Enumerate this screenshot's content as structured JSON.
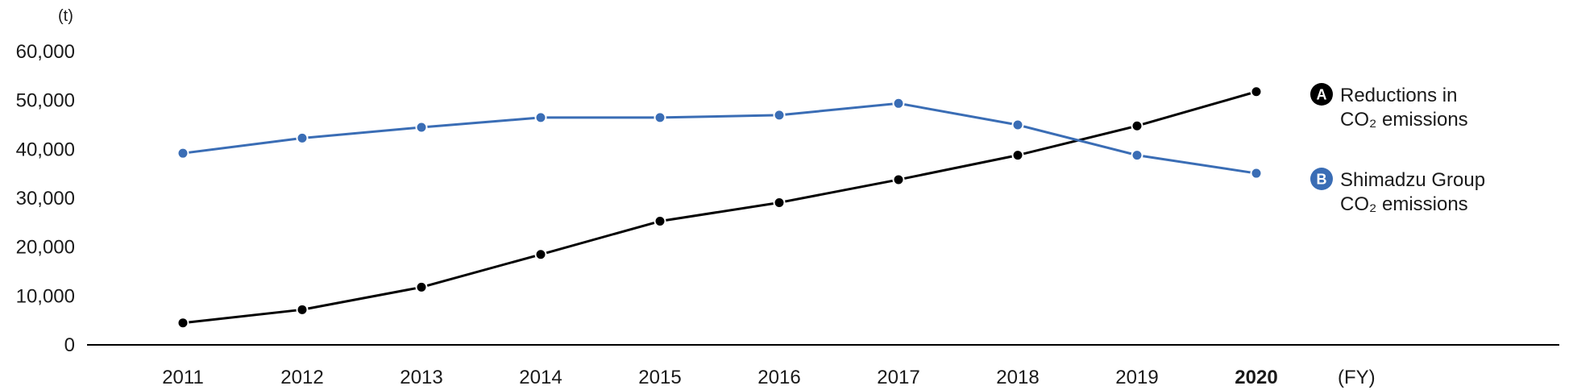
{
  "chart_data": {
    "type": "line",
    "y_unit": "(t)",
    "x_unit": "(FY)",
    "categories": [
      "2011",
      "2012",
      "2013",
      "2014",
      "2015",
      "2016",
      "2017",
      "2018",
      "2019",
      "2020"
    ],
    "highlighted_category": "2020",
    "y_ticks": [
      "0",
      "10,000",
      "20,000",
      "30,000",
      "40,000",
      "50,000",
      "60,000"
    ],
    "ylim": [
      0,
      60000
    ],
    "grid": false,
    "legend_position": "right",
    "series": [
      {
        "badge": "A",
        "name_line1": "Reductions in",
        "name_line2": "CO₂ emissions",
        "color": "#000000",
        "values": [
          4500,
          7200,
          11800,
          18500,
          25300,
          29100,
          33800,
          38800,
          44800,
          51800
        ]
      },
      {
        "badge": "B",
        "name_line1": "Shimadzu Group",
        "name_line2": "CO₂ emissions",
        "color": "#3a6db5",
        "values": [
          39200,
          42300,
          44500,
          46500,
          46500,
          47000,
          49400,
          45000,
          38800,
          35100
        ]
      }
    ]
  }
}
